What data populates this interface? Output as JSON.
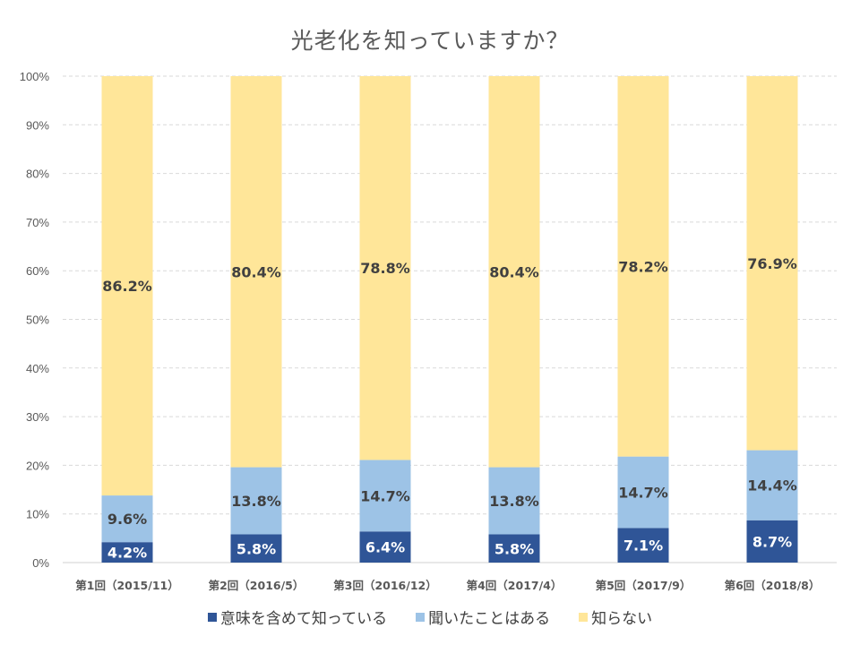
{
  "chart_data": {
    "type": "bar",
    "stacked": true,
    "normalized": true,
    "title": "光老化を知っていますか？",
    "xlabel": "",
    "ylabel": "",
    "ylim": [
      0,
      100
    ],
    "yticks": [
      "0%",
      "10%",
      "20%",
      "30%",
      "40%",
      "50%",
      "60%",
      "70%",
      "80%",
      "90%",
      "100%"
    ],
    "grid": true,
    "legend_position": "bottom",
    "categories": [
      "第1回（2015/11）",
      "第2回（2016/5）",
      "第3回（2016/12）",
      "第4回（2017/4）",
      "第5回（2017/9）",
      "第6回（2018/8）"
    ],
    "series": [
      {
        "name": "意味を含めて知っている",
        "color": "#2F5597",
        "label_color": "#FFFFFF",
        "values": [
          4.2,
          5.8,
          6.4,
          5.8,
          7.1,
          8.7
        ],
        "labels": [
          "4.2%",
          "5.8%",
          "6.4%",
          "5.8%",
          "7.1%",
          "8.7%"
        ]
      },
      {
        "name": "聞いたことはある",
        "color": "#9DC3E6",
        "label_color": "#404040",
        "values": [
          9.6,
          13.8,
          14.7,
          13.8,
          14.7,
          14.4
        ],
        "labels": [
          "9.6%",
          "13.8%",
          "14.7%",
          "13.8%",
          "14.7%",
          "14.4%"
        ]
      },
      {
        "name": "知らない",
        "color": "#FFE699",
        "label_color": "#404040",
        "values": [
          86.2,
          80.4,
          78.8,
          80.4,
          78.2,
          76.9
        ],
        "labels": [
          "86.2%",
          "80.4%",
          "78.8%",
          "80.4%",
          "78.2%",
          "76.9%"
        ]
      }
    ]
  }
}
